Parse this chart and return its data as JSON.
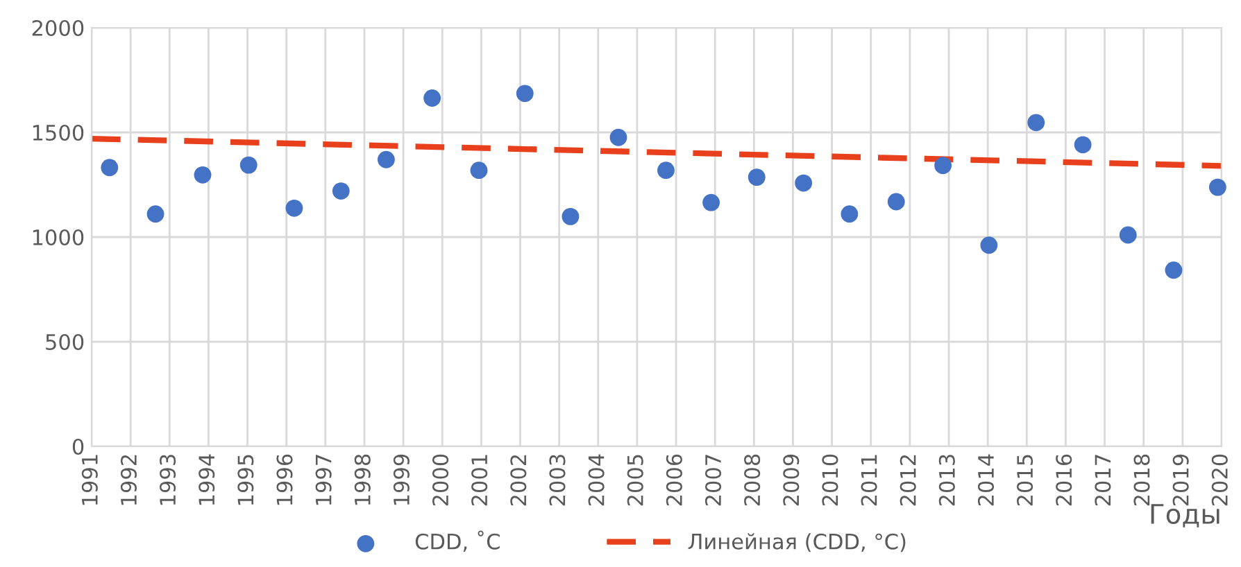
{
  "chart_data": {
    "type": "scatter",
    "xlabel": "Годы",
    "xlim": [
      1991,
      2020
    ],
    "xticks": [
      1991,
      1992,
      1993,
      1994,
      1995,
      1996,
      1997,
      1998,
      1999,
      2000,
      2001,
      2002,
      2003,
      2004,
      2005,
      2006,
      2007,
      2008,
      2009,
      2010,
      2011,
      2012,
      2013,
      2014,
      2015,
      2016,
      2017,
      2018,
      2019,
      2020
    ],
    "ylim": [
      0,
      2000
    ],
    "yticks": [
      0,
      500,
      1000,
      1500,
      2000
    ],
    "grid": true,
    "legend": "bottom",
    "series": [
      {
        "name": "CDD, ˚C",
        "marker": "circle",
        "color": "#4472c4",
        "x": [
          1991.46,
          1992.64,
          1993.85,
          1995.03,
          1996.2,
          1997.4,
          1998.56,
          1999.74,
          2000.94,
          2002.12,
          2003.29,
          2004.52,
          2005.74,
          2006.9,
          2008.07,
          2009.27,
          2010.45,
          2011.65,
          2012.85,
          2014.03,
          2015.24,
          2016.44,
          2017.6,
          2018.77,
          2019.9
        ],
        "values": [
          1332,
          1110,
          1297,
          1344,
          1138,
          1220,
          1370,
          1664,
          1319,
          1686,
          1098,
          1476,
          1319,
          1165,
          1286,
          1258,
          1110,
          1169,
          1342,
          961,
          1547,
          1441,
          1010,
          842,
          1238
        ]
      },
      {
        "name": "Линейная (CDD, °C)",
        "type": "line",
        "line_style": "dashed",
        "color": "#e8401c",
        "x": [
          1991,
          2020
        ],
        "values": [
          1470,
          1340
        ]
      }
    ]
  }
}
